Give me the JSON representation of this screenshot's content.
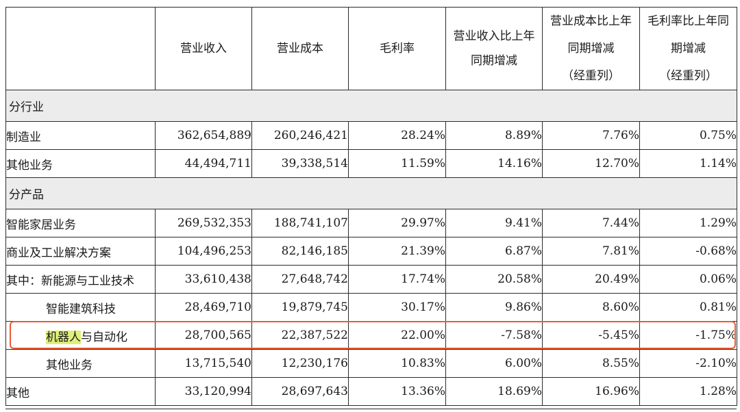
{
  "headers": {
    "blank": "",
    "revenue": "营业收入",
    "cost": "营业成本",
    "margin": "毛利率",
    "rev_yoy_line1": "营业收入比上年",
    "rev_yoy_line2": "同期增减",
    "cost_yoy_line1": "营业成本比上年",
    "cost_yoy_line2": "同期增减",
    "cost_yoy_line3": "（经重列）",
    "margin_yoy_line1": "毛利率比上年同",
    "margin_yoy_line2": "期增减",
    "margin_yoy_line3": "（经重列）"
  },
  "sections": {
    "by_industry": "分行业",
    "by_product": "分产品"
  },
  "rows": [
    {
      "label": "制造业",
      "revenue": "362,654,889",
      "cost": "260,246,421",
      "margin": "28.24%",
      "rev_yoy": "8.89%",
      "cost_yoy": "7.76%",
      "margin_yoy": "0.75%"
    },
    {
      "label": "其他业务",
      "revenue": "44,494,711",
      "cost": "39,338,514",
      "margin": "11.59%",
      "rev_yoy": "14.16%",
      "cost_yoy": "12.70%",
      "margin_yoy": "1.14%"
    },
    {
      "label": "智能家居业务",
      "revenue": "269,532,353",
      "cost": "188,741,107",
      "margin": "29.97%",
      "rev_yoy": "9.41%",
      "cost_yoy": "7.44%",
      "margin_yoy": "1.29%"
    },
    {
      "label": "商业及工业解决方案",
      "revenue": "104,496,253",
      "cost": "82,146,185",
      "margin": "21.39%",
      "rev_yoy": "6.87%",
      "cost_yoy": "7.81%",
      "margin_yoy": "-0.68%"
    },
    {
      "label": "其中：新能源与工业技术",
      "revenue": "33,610,438",
      "cost": "27,648,742",
      "margin": "17.74%",
      "rev_yoy": "20.58%",
      "cost_yoy": "20.49%",
      "margin_yoy": "0.06%"
    },
    {
      "label": "智能建筑科技",
      "revenue": "28,469,710",
      "cost": "19,879,745",
      "margin": "30.17%",
      "rev_yoy": "9.86%",
      "cost_yoy": "8.60%",
      "margin_yoy": "0.81%"
    },
    {
      "label_highlight": "机器人",
      "label_rest": "与自动化",
      "revenue": "28,700,565",
      "cost": "22,387,522",
      "margin": "22.00%",
      "rev_yoy": "-7.58%",
      "cost_yoy": "-5.45%",
      "margin_yoy": "-1.75%"
    },
    {
      "label": "其他业务",
      "revenue": "13,715,540",
      "cost": "12,230,176",
      "margin": "10.83%",
      "rev_yoy": "6.00%",
      "cost_yoy": "8.55%",
      "margin_yoy": "-2.10%"
    },
    {
      "label": "其他",
      "revenue": "33,120,994",
      "cost": "28,697,643",
      "margin": "13.36%",
      "rev_yoy": "18.69%",
      "cost_yoy": "16.96%",
      "margin_yoy": "1.28%"
    }
  ],
  "colors": {
    "section_band": "#ececec",
    "highlight_text": "#dff07a",
    "highlight_box": "#e85a33"
  }
}
